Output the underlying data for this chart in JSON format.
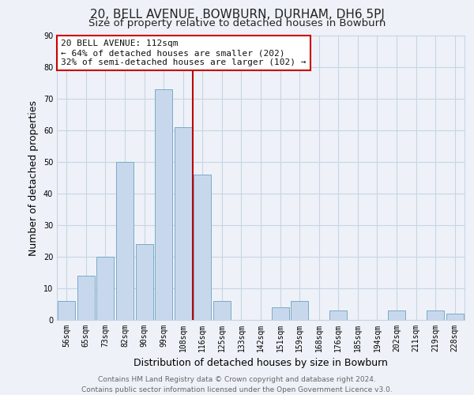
{
  "title": "20, BELL AVENUE, BOWBURN, DURHAM, DH6 5PJ",
  "subtitle": "Size of property relative to detached houses in Bowburn",
  "xlabel": "Distribution of detached houses by size in Bowburn",
  "ylabel": "Number of detached properties",
  "footer_line1": "Contains HM Land Registry data © Crown copyright and database right 2024.",
  "footer_line2": "Contains public sector information licensed under the Open Government Licence v3.0.",
  "categories": [
    "56sqm",
    "65sqm",
    "73sqm",
    "82sqm",
    "90sqm",
    "99sqm",
    "108sqm",
    "116sqm",
    "125sqm",
    "133sqm",
    "142sqm",
    "151sqm",
    "159sqm",
    "168sqm",
    "176sqm",
    "185sqm",
    "194sqm",
    "202sqm",
    "211sqm",
    "219sqm",
    "228sqm"
  ],
  "values": [
    6,
    14,
    20,
    50,
    24,
    73,
    61,
    46,
    6,
    0,
    0,
    4,
    6,
    0,
    3,
    0,
    0,
    3,
    0,
    3,
    2
  ],
  "bar_color": "#c8d8ec",
  "bar_edge_color": "#7aaac8",
  "ylim": [
    0,
    90
  ],
  "yticks": [
    0,
    10,
    20,
    30,
    40,
    50,
    60,
    70,
    80,
    90
  ],
  "vline_color": "#bb0000",
  "annotation_text": "20 BELL AVENUE: 112sqm\n← 64% of detached houses are smaller (202)\n32% of semi-detached houses are larger (102) →",
  "annotation_box_color": "#cc0000",
  "annotation_bg": "#ffffff",
  "grid_color": "#c8d4e4",
  "bg_color": "#eef2f8",
  "title_fontsize": 11,
  "subtitle_fontsize": 9.5,
  "label_fontsize": 9,
  "tick_fontsize": 7,
  "annotation_fontsize": 8,
  "footer_fontsize": 6.5,
  "footer_color": "#666666"
}
